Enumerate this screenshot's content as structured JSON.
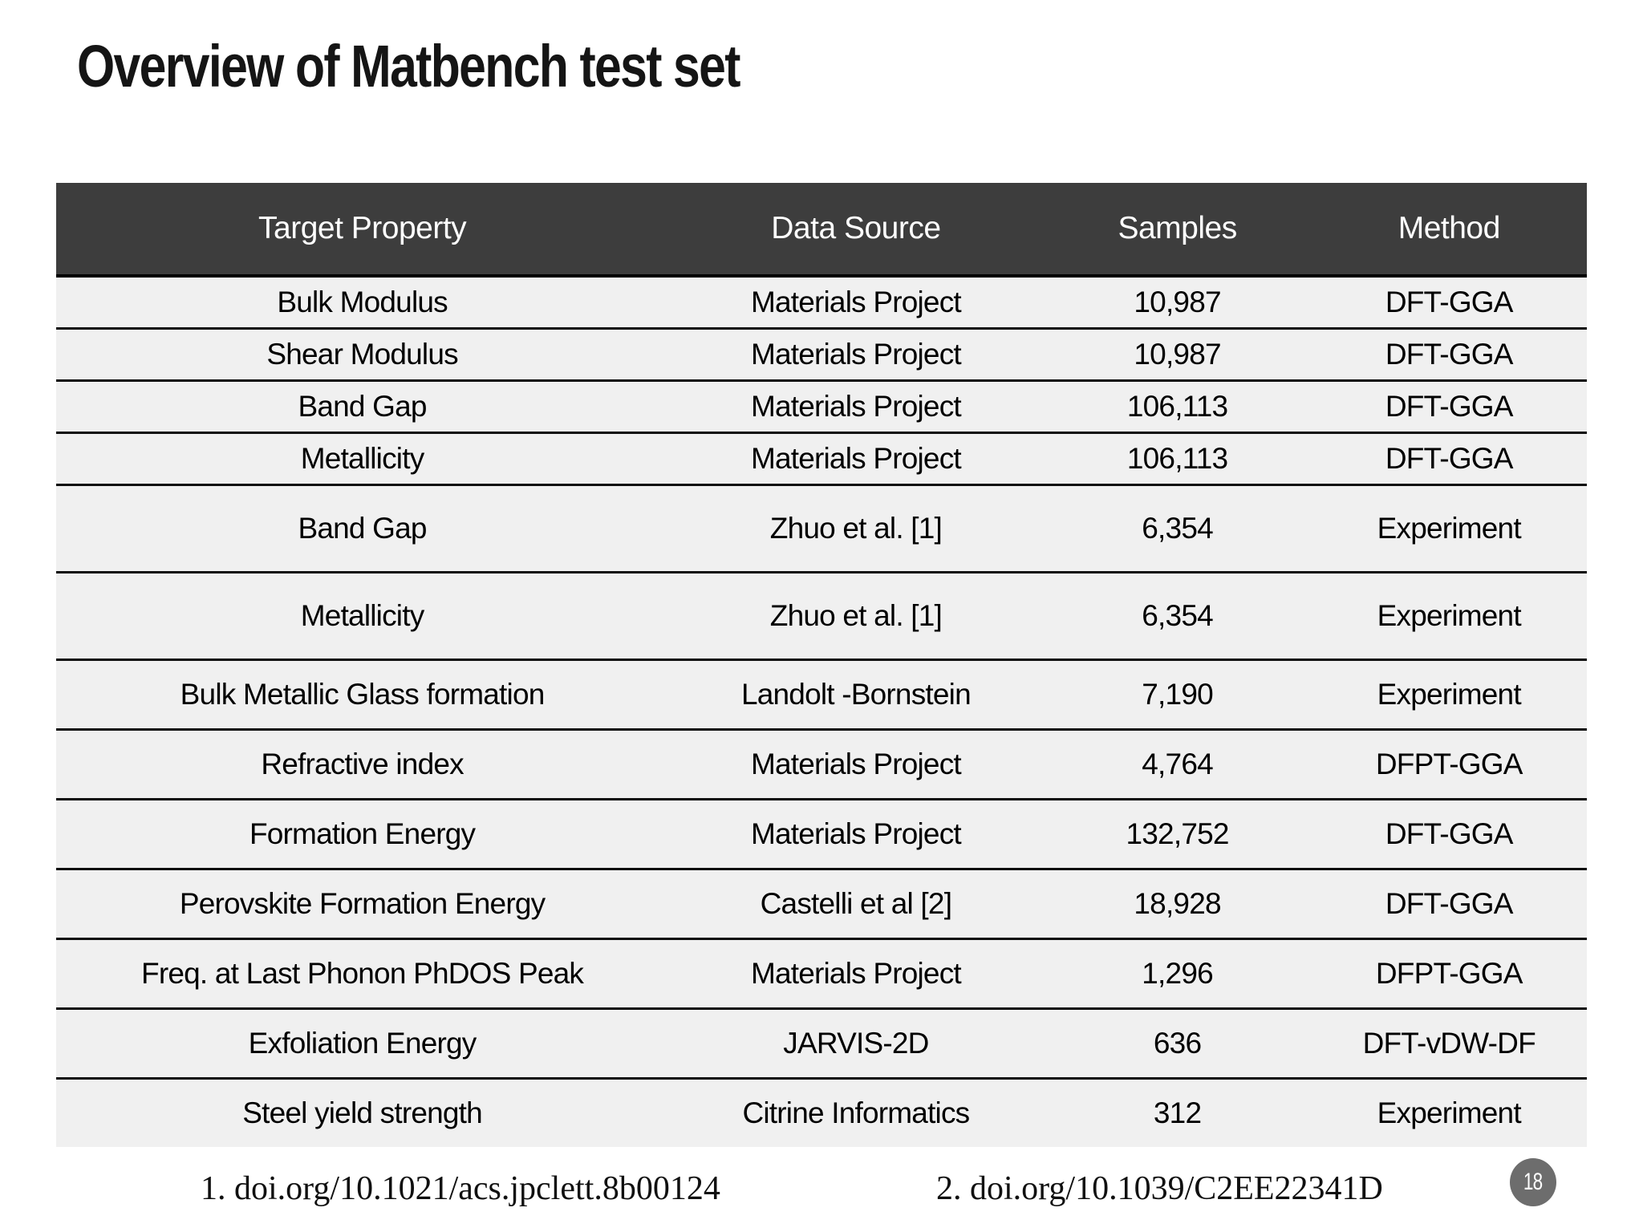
{
  "title": "Overview of Matbench test set",
  "table": {
    "columns": [
      "Target Property",
      "Data Source",
      "Samples",
      "Method"
    ],
    "rows": [
      {
        "property": "Bulk Modulus",
        "source": "Materials Project",
        "samples": "10,987",
        "method": "DFT-GGA",
        "size": "compact"
      },
      {
        "property": "Shear Modulus",
        "source": "Materials Project",
        "samples": "10,987",
        "method": "DFT-GGA",
        "size": "compact"
      },
      {
        "property": "Band Gap",
        "source": "Materials Project",
        "samples": "106,113",
        "method": "DFT-GGA",
        "size": "compact"
      },
      {
        "property": "Metallicity",
        "source": "Materials Project",
        "samples": "106,113",
        "method": "DFT-GGA",
        "size": "compact"
      },
      {
        "property": "Band Gap",
        "source": "Zhuo et al.  [1]",
        "samples": "6,354",
        "method": "Experiment",
        "size": "tall"
      },
      {
        "property": "Metallicity",
        "source": "Zhuo et al. [1]",
        "samples": "6,354",
        "method": "Experiment",
        "size": "tall"
      },
      {
        "property": "Bulk Metallic Glass formation",
        "source": "Landolt -Bornstein",
        "samples": "7,190",
        "method": "Experiment",
        "size": "normal"
      },
      {
        "property": "Refractive index",
        "source": "Materials Project",
        "samples": "4,764",
        "method": "DFPT-GGA",
        "size": "normal"
      },
      {
        "property": "Formation Energy",
        "source": "Materials Project",
        "samples": "132,752",
        "method": "DFT-GGA",
        "size": "normal"
      },
      {
        "property": "Perovskite Formation Energy",
        "source": "Castelli et al [2]",
        "samples": "18,928",
        "method": "DFT-GGA",
        "size": "normal"
      },
      {
        "property": "Freq. at Last Phonon PhDOS Peak",
        "source": "Materials Project",
        "samples": "1,296",
        "method": "DFPT-GGA",
        "size": "normal"
      },
      {
        "property": "Exfoliation Energy",
        "source": "JARVIS-2D",
        "samples": "636",
        "method": "DFT-vDW-DF",
        "size": "normal"
      },
      {
        "property": "Steel yield strength",
        "source": "Citrine Informatics",
        "samples": "312",
        "method": "Experiment",
        "size": "normal"
      }
    ]
  },
  "footer": {
    "ref1": "1. doi.org/10.1021/acs.jpclett.8b00124",
    "ref2": "2. doi.org/10.1039/C2EE22341D",
    "page_number": "18"
  },
  "colors": {
    "header_bg": "#3d3d3d",
    "header_text": "#ffffff",
    "row_bg": "#f0f0f0",
    "row_border": "#0c0c0c",
    "badge_bg": "#6d6d6d"
  }
}
